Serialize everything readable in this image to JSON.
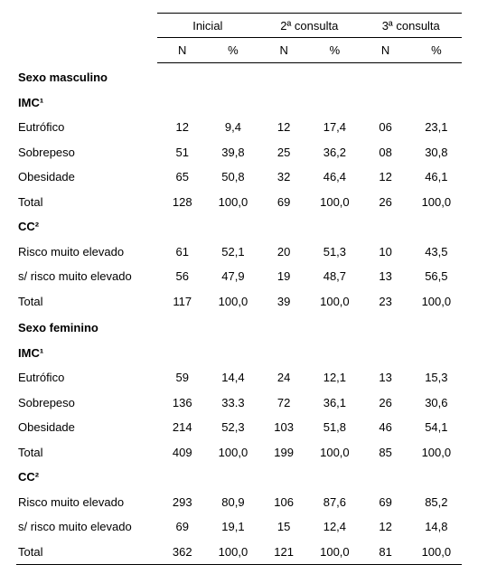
{
  "columns": {
    "groups": [
      "Inicial",
      "2ª consulta",
      "3ª consulta"
    ],
    "sub": [
      "N",
      "%"
    ]
  },
  "sections": [
    {
      "title": "Sexo masculino",
      "blocks": [
        {
          "title": "IMC¹",
          "rows": [
            {
              "label": "Eutrófico",
              "vals": [
                "12",
                "9,4",
                "12",
                "17,4",
                "06",
                "23,1"
              ]
            },
            {
              "label": "Sobrepeso",
              "vals": [
                "51",
                "39,8",
                "25",
                "36,2",
                "08",
                "30,8"
              ]
            },
            {
              "label": "Obesidade",
              "vals": [
                "65",
                "50,8",
                "32",
                "46,4",
                "12",
                "46,1"
              ]
            },
            {
              "label": "Total",
              "vals": [
                "128",
                "100,0",
                "69",
                "100,0",
                "26",
                "100,0"
              ]
            }
          ]
        },
        {
          "title": "CC²",
          "rows": [
            {
              "label": "Risco muito elevado",
              "vals": [
                "61",
                "52,1",
                "20",
                "51,3",
                "10",
                "43,5"
              ]
            },
            {
              "label": "s/ risco muito elevado",
              "vals": [
                "56",
                "47,9",
                "19",
                "48,7",
                "13",
                "56,5"
              ]
            },
            {
              "label": "Total",
              "vals": [
                "117",
                "100,0",
                "39",
                "100,0",
                "23",
                "100,0"
              ]
            }
          ]
        }
      ]
    },
    {
      "title": "Sexo feminino",
      "blocks": [
        {
          "title": "IMC¹",
          "rows": [
            {
              "label": "Eutrófico",
              "vals": [
                "59",
                "14,4",
                "24",
                "12,1",
                "13",
                "15,3"
              ]
            },
            {
              "label": "Sobrepeso",
              "vals": [
                "136",
                "33.3",
                "72",
                "36,1",
                "26",
                "30,6"
              ]
            },
            {
              "label": "Obesidade",
              "vals": [
                "214",
                "52,3",
                "103",
                "51,8",
                "46",
                "54,1"
              ]
            },
            {
              "label": "Total",
              "vals": [
                "409",
                "100,0",
                "199",
                "100,0",
                "85",
                "100,0"
              ]
            }
          ]
        },
        {
          "title": "CC²",
          "rows": [
            {
              "label": "Risco muito elevado",
              "vals": [
                "293",
                "80,9",
                "106",
                "87,6",
                "69",
                "85,2"
              ]
            },
            {
              "label": "s/ risco muito elevado",
              "vals": [
                "69",
                "19,1",
                "15",
                "12,4",
                "12",
                "14,8"
              ]
            },
            {
              "label": "Total",
              "vals": [
                "362",
                "100,0",
                "121",
                "100,0",
                "81",
                "100,0"
              ]
            }
          ]
        }
      ]
    }
  ]
}
